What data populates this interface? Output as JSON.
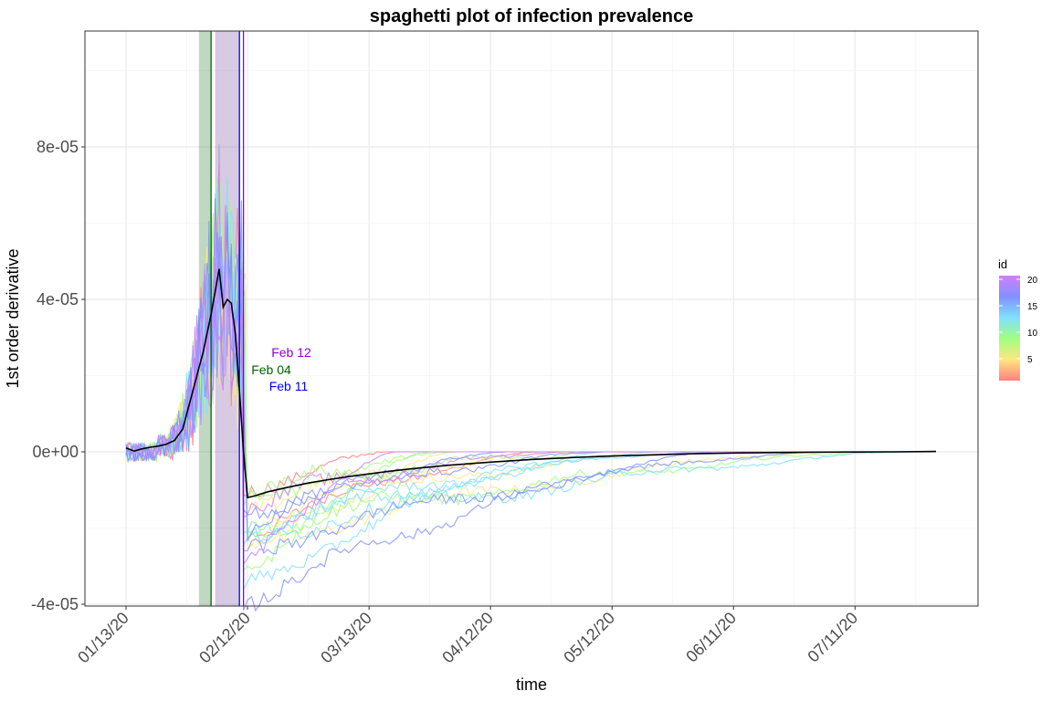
{
  "chart_data": {
    "type": "line",
    "title": "spaghetti plot of infection prevalence",
    "xlabel": "time",
    "ylabel": "1st order derivative",
    "x_start_label": "01/13/20",
    "x_end_day": 200,
    "ylim": [
      -4e-05,
      0.00011
    ],
    "y_ticks": [
      {
        "value": -4e-05,
        "label": "-4e-05"
      },
      {
        "value": 0,
        "label": "0e+00"
      },
      {
        "value": 4e-05,
        "label": "4e-05"
      },
      {
        "value": 8e-05,
        "label": "8e-05"
      }
    ],
    "x_ticks": [
      {
        "day": 0,
        "label": "01/13/20"
      },
      {
        "day": 30,
        "label": "02/12/20"
      },
      {
        "day": 60,
        "label": "03/13/20"
      },
      {
        "day": 90,
        "label": "04/12/20"
      },
      {
        "day": 120,
        "label": "05/12/20"
      },
      {
        "day": 150,
        "label": "06/11/20"
      },
      {
        "day": 180,
        "label": "07/11/20"
      }
    ],
    "shaded_bands": [
      {
        "from_day": 18,
        "to_day": 21,
        "color": "#2e7d32"
      },
      {
        "from_day": 22,
        "to_day": 28,
        "color": "#7b4f9e"
      }
    ],
    "vertical_lines": [
      {
        "day": 21,
        "label": "Feb 04",
        "color": "#006400"
      },
      {
        "day": 28,
        "label": "Feb 11",
        "color": "#0000ff"
      },
      {
        "day": 29,
        "label": "Feb 12",
        "color": "#9400d3"
      }
    ],
    "mean_series": {
      "name": "mean",
      "color": "#000000",
      "days": [
        0,
        2,
        4,
        6,
        8,
        10,
        12,
        14,
        15,
        16,
        17,
        18,
        19,
        20,
        21,
        22,
        23,
        24,
        25,
        26,
        27,
        28,
        29,
        30,
        32,
        35,
        40,
        45,
        50,
        55,
        60,
        65,
        70,
        80,
        90,
        100,
        110,
        120,
        130,
        140,
        150,
        160,
        170,
        180,
        190,
        200
      ],
      "values": [
        1e-06,
        2e-07,
        8e-07,
        1.2e-06,
        1.5e-06,
        2e-06,
        3e-06,
        6e-06,
        1e-05,
        1.4e-05,
        1.8e-05,
        2.2e-05,
        2.6e-05,
        3.1e-05,
        3.6e-05,
        4.2e-05,
        4.8e-05,
        3.8e-05,
        4e-05,
        3.9e-05,
        3.1e-05,
        1.6e-05,
        2e-07,
        -1.2e-05,
        -1.15e-05,
        -1.05e-05,
        -9.3e-06,
        -8.2e-06,
        -7.3e-06,
        -6.5e-06,
        -5.8e-06,
        -5.1e-06,
        -4.5e-06,
        -3.5e-06,
        -2.7e-06,
        -2e-06,
        -1.5e-06,
        -1.1e-06,
        -8e-07,
        -5e-07,
        -3e-07,
        -2e-07,
        -1e-07,
        -5e-08,
        0.0,
        1e-07
      ]
    },
    "series_count": 20,
    "legend": {
      "title": "id",
      "ticks": [
        "5",
        "10",
        "15",
        "20"
      ],
      "colors": [
        "#ff8080",
        "#ffe680",
        "#a0ff80",
        "#80e0ff",
        "#8090ff",
        "#d080ff"
      ]
    },
    "grid": true
  }
}
